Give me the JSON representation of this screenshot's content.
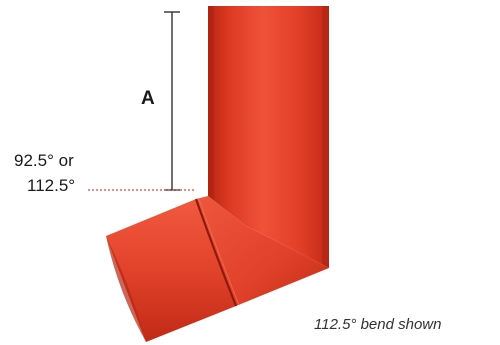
{
  "diagram": {
    "dimension_label": "A",
    "angle_label_line1": "92.5° or",
    "angle_label_line2": "112.5°",
    "caption": "112.5° bend shown"
  },
  "colors": {
    "pipe_base": "#e8412a",
    "pipe_dark": "#c22a17",
    "pipe_light": "#f05a3f",
    "dimension_line": "#222222",
    "reference_line": "#e0463a"
  }
}
